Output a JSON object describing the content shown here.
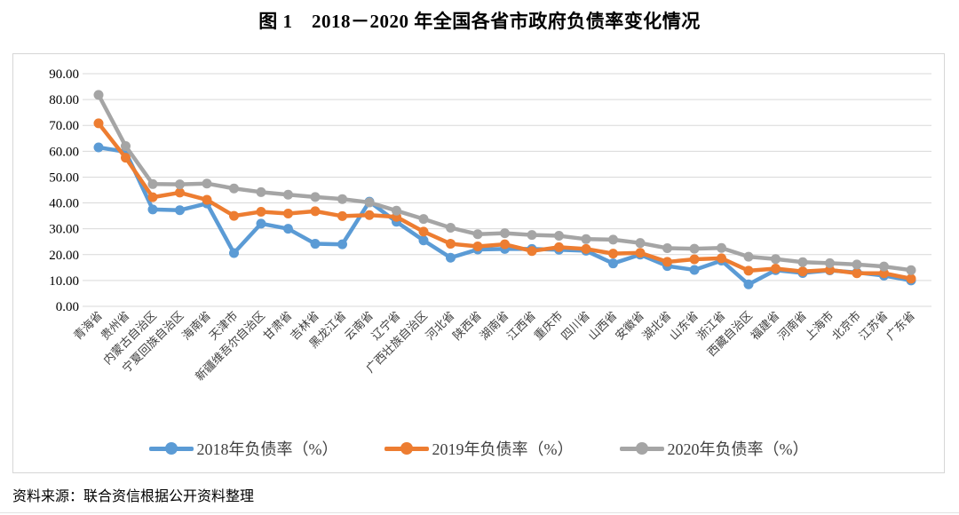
{
  "figure": {
    "title": "图 1　2018－2020 年全国各省市政府负债率变化情况",
    "source_note": "资料来源：联合资信根据公开资料整理"
  },
  "colors": {
    "series_2018": "#5B9BD5",
    "series_2019": "#ED7D31",
    "series_2020": "#A5A5A5",
    "gridline": "#D9D9D9",
    "frame_border": "#D6D6D6",
    "axis_text": "#000000",
    "legend_text": "#404040"
  },
  "chart_data": {
    "type": "line",
    "title": "图 1　2018－2020 年全国各省市政府负债率变化情况",
    "xlabel": "",
    "ylabel": "",
    "ylim": [
      0,
      90
    ],
    "ytick_step": 10,
    "ytick_labels": [
      "0.00",
      "10.00",
      "20.00",
      "30.00",
      "40.00",
      "50.00",
      "60.00",
      "70.00",
      "80.00",
      "90.00"
    ],
    "grid": true,
    "marker": "circle",
    "legend_position": "bottom",
    "categories": [
      "青海省",
      "贵州省",
      "内蒙古自治区",
      "宁夏回族自治区",
      "海南省",
      "天津市",
      "新疆维吾尔自治区",
      "甘肃省",
      "吉林省",
      "黑龙江省",
      "云南省",
      "辽宁省",
      "广西壮族自治区",
      "河北省",
      "陕西省",
      "湖南省",
      "江西省",
      "重庆市",
      "四川省",
      "山西省",
      "安徽省",
      "湖北省",
      "山东省",
      "浙江省",
      "西藏自治区",
      "福建省",
      "河南省",
      "上海市",
      "北京市",
      "江苏省",
      "广东省"
    ],
    "series": [
      {
        "name": "2018年负债率（%）",
        "color": "#5B9BD5",
        "values": [
          61.5,
          59.8,
          37.5,
          37.2,
          39.8,
          20.6,
          32.0,
          30.0,
          24.2,
          24.0,
          40.5,
          32.7,
          25.5,
          18.8,
          22.0,
          22.2,
          22.2,
          21.9,
          21.5,
          16.6,
          20.0,
          15.6,
          14.1,
          17.7,
          8.5,
          14.0,
          12.9,
          13.9,
          13.1,
          11.9,
          10.0
        ]
      },
      {
        "name": "2019年负债率（%）",
        "color": "#ED7D31",
        "values": [
          70.8,
          57.5,
          42.2,
          44.0,
          41.2,
          35.0,
          36.6,
          35.9,
          36.8,
          34.9,
          35.3,
          34.6,
          28.9,
          24.2,
          23.2,
          24.0,
          21.4,
          22.9,
          22.2,
          20.4,
          20.7,
          17.2,
          18.2,
          18.6,
          13.8,
          14.6,
          13.5,
          14.1,
          12.8,
          12.8,
          10.7
        ]
      },
      {
        "name": "2020年负债率（%）",
        "color": "#A5A5A5",
        "values": [
          81.8,
          62.0,
          47.3,
          47.2,
          47.5,
          45.6,
          44.2,
          43.2,
          42.3,
          41.5,
          40.2,
          37.0,
          33.8,
          30.4,
          27.9,
          28.3,
          27.6,
          27.3,
          26.0,
          25.8,
          24.5,
          22.5,
          22.3,
          22.6,
          19.2,
          18.3,
          17.1,
          16.7,
          16.2,
          15.4,
          14.0
        ]
      }
    ]
  }
}
